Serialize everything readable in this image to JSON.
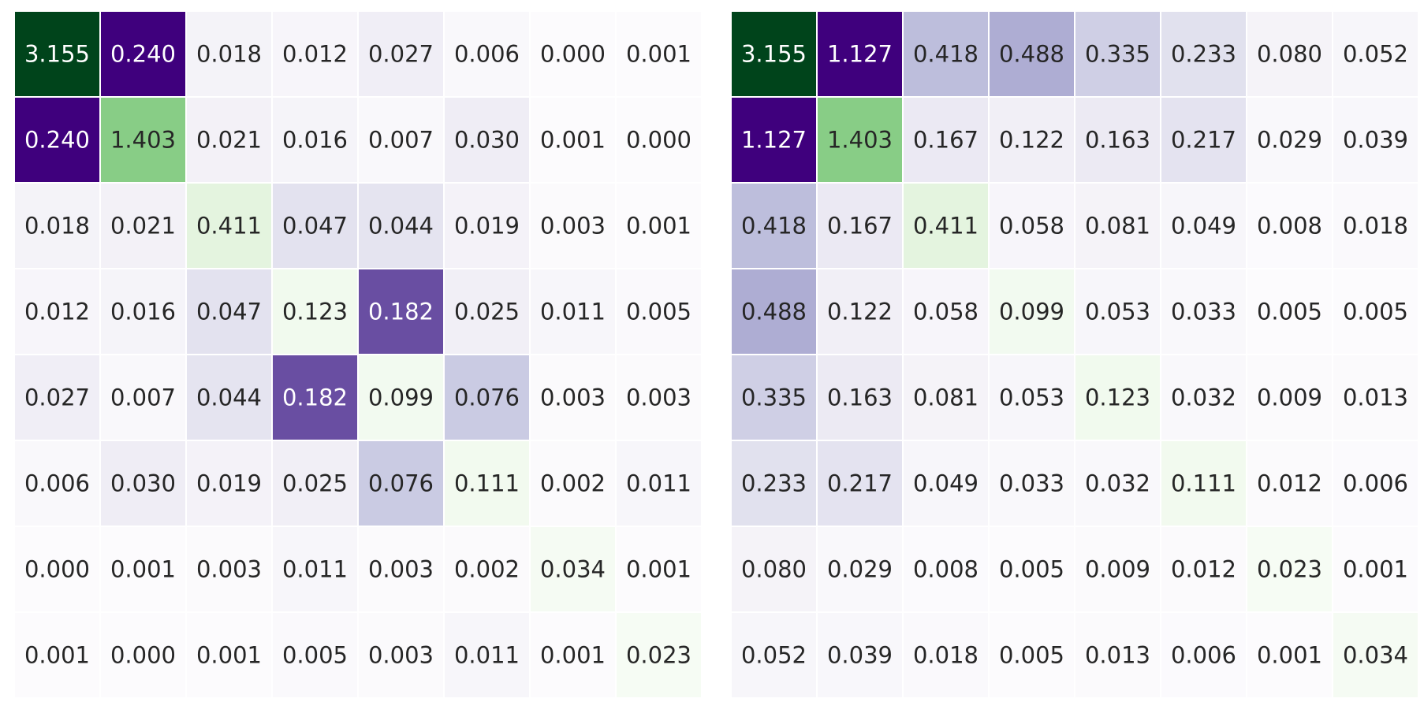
{
  "colors": {
    "diagonal_scale": [
      "#f7fcf5",
      "#e5f5e0",
      "#c7e9c0",
      "#a1d99b",
      "#74c476",
      "#41ab5d",
      "#238b45",
      "#006d2c",
      "#00441b"
    ],
    "offdiag_scale": [
      "#fcfbfd",
      "#efedf5",
      "#dadaeb",
      "#bcbddc",
      "#9e9ac8",
      "#807dba",
      "#6a51a3",
      "#54278f",
      "#3f007d"
    ],
    "cell_border": "#ffffff",
    "text_dark": "#262626",
    "text_light": "#ffffff"
  },
  "chart_data": [
    {
      "type": "heatmap",
      "title": "",
      "xlabel": "",
      "ylabel": "",
      "rows": 8,
      "cols": 8,
      "color_encoding": "diagonal cells green scale, off-diagonal cells purple scale",
      "diagonal_range": [
        0,
        3.155
      ],
      "offdiag_range": [
        0,
        0.24
      ],
      "values": [
        [
          "3.155",
          "0.240",
          "0.018",
          "0.012",
          "0.027",
          "0.006",
          "0.000",
          "0.001"
        ],
        [
          "0.240",
          "1.403",
          "0.021",
          "0.016",
          "0.007",
          "0.030",
          "0.001",
          "0.000"
        ],
        [
          "0.018",
          "0.021",
          "0.411",
          "0.047",
          "0.044",
          "0.019",
          "0.003",
          "0.001"
        ],
        [
          "0.012",
          "0.016",
          "0.047",
          "0.123",
          "0.182",
          "0.025",
          "0.011",
          "0.005"
        ],
        [
          "0.027",
          "0.007",
          "0.044",
          "0.182",
          "0.099",
          "0.076",
          "0.003",
          "0.003"
        ],
        [
          "0.006",
          "0.030",
          "0.019",
          "0.025",
          "0.076",
          "0.111",
          "0.002",
          "0.011"
        ],
        [
          "0.000",
          "0.001",
          "0.003",
          "0.011",
          "0.003",
          "0.002",
          "0.034",
          "0.001"
        ],
        [
          "0.001",
          "0.000",
          "0.001",
          "0.005",
          "0.003",
          "0.011",
          "0.001",
          "0.023"
        ]
      ]
    },
    {
      "type": "heatmap",
      "title": "",
      "xlabel": "",
      "ylabel": "",
      "rows": 8,
      "cols": 8,
      "color_encoding": "diagonal cells green scale, off-diagonal cells purple scale",
      "diagonal_range": [
        0,
        3.155
      ],
      "offdiag_range": [
        0,
        1.127
      ],
      "values": [
        [
          "3.155",
          "1.127",
          "0.418",
          "0.488",
          "0.335",
          "0.233",
          "0.080",
          "0.052"
        ],
        [
          "1.127",
          "1.403",
          "0.167",
          "0.122",
          "0.163",
          "0.217",
          "0.029",
          "0.039"
        ],
        [
          "0.418",
          "0.167",
          "0.411",
          "0.058",
          "0.081",
          "0.049",
          "0.008",
          "0.018"
        ],
        [
          "0.488",
          "0.122",
          "0.058",
          "0.099",
          "0.053",
          "0.033",
          "0.005",
          "0.005"
        ],
        [
          "0.335",
          "0.163",
          "0.081",
          "0.053",
          "0.123",
          "0.032",
          "0.009",
          "0.013"
        ],
        [
          "0.233",
          "0.217",
          "0.049",
          "0.033",
          "0.032",
          "0.111",
          "0.012",
          "0.006"
        ],
        [
          "0.080",
          "0.029",
          "0.008",
          "0.005",
          "0.009",
          "0.012",
          "0.023",
          "0.001"
        ],
        [
          "0.052",
          "0.039",
          "0.018",
          "0.005",
          "0.013",
          "0.006",
          "0.001",
          "0.034"
        ]
      ]
    }
  ]
}
